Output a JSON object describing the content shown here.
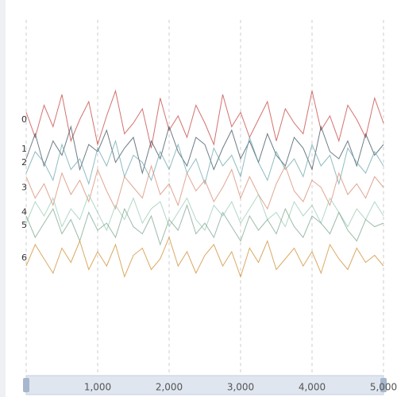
{
  "chart_data": {
    "type": "line",
    "x": [
      0,
      125,
      250,
      375,
      500,
      625,
      750,
      875,
      1000,
      1125,
      1250,
      1375,
      1500,
      1625,
      1750,
      1875,
      2000,
      2125,
      2250,
      2375,
      2500,
      2625,
      2750,
      2875,
      3000,
      3125,
      3250,
      3375,
      3500,
      3625,
      3750,
      3875,
      4000,
      4125,
      4250,
      4375,
      4500,
      4625,
      4750,
      4875,
      5000
    ],
    "xlim": [
      0,
      5000
    ],
    "xticks": [
      {
        "value": 1000,
        "label": "1,000"
      },
      {
        "value": 2000,
        "label": "2,000"
      },
      {
        "value": 3000,
        "label": "3,000"
      },
      {
        "value": 4000,
        "label": "4,000"
      },
      {
        "value": 5000,
        "label": "5,000"
      }
    ],
    "ylim": [
      0,
      10
    ],
    "grid": true,
    "series": [
      {
        "name": "0",
        "color": "#c23531",
        "values": [
          7.3,
          6.6,
          7.5,
          6.9,
          7.8,
          6.5,
          7.1,
          7.6,
          6.4,
          7.2,
          7.9,
          6.7,
          7.0,
          7.4,
          6.3,
          7.7,
          6.8,
          7.2,
          6.6,
          7.5,
          7.0,
          6.4,
          7.8,
          6.9,
          7.3,
          6.6,
          7.1,
          7.6,
          6.5,
          7.4,
          7.0,
          6.7,
          7.9,
          6.8,
          7.2,
          6.5,
          7.5,
          7.1,
          6.6,
          7.7,
          7.0
        ]
      },
      {
        "name": "1",
        "color": "#2f4554",
        "values": [
          6.0,
          6.7,
          5.8,
          6.5,
          6.1,
          6.9,
          5.7,
          6.4,
          6.2,
          6.8,
          5.9,
          6.3,
          6.6,
          5.6,
          6.5,
          6.0,
          6.9,
          6.2,
          5.8,
          6.6,
          6.4,
          5.7,
          6.3,
          6.8,
          6.0,
          6.5,
          5.9,
          6.7,
          6.1,
          5.8,
          6.6,
          6.3,
          5.7,
          6.9,
          6.2,
          6.0,
          6.5,
          5.8,
          6.7,
          6.1,
          6.4
        ]
      },
      {
        "name": "2",
        "color": "#61a0a8",
        "values": [
          5.6,
          6.2,
          5.9,
          5.4,
          6.4,
          5.7,
          6.0,
          5.3,
          6.3,
          5.8,
          6.5,
          5.5,
          6.1,
          5.9,
          5.4,
          6.2,
          5.7,
          6.4,
          5.6,
          6.0,
          5.3,
          6.3,
          5.8,
          6.1,
          5.5,
          6.6,
          5.9,
          5.4,
          6.2,
          5.7,
          6.0,
          5.5,
          6.4,
          5.8,
          6.1,
          5.3,
          6.3,
          5.9,
          5.6,
          6.2,
          5.8
        ]
      },
      {
        "name": "3",
        "color": "#d48265",
        "values": [
          5.5,
          4.9,
          5.3,
          4.7,
          5.6,
          5.0,
          5.4,
          4.8,
          5.7,
          5.1,
          4.6,
          5.5,
          5.2,
          4.9,
          5.8,
          5.0,
          5.3,
          4.7,
          5.6,
          5.1,
          5.4,
          4.8,
          5.2,
          5.7,
          4.9,
          5.5,
          5.0,
          4.6,
          5.3,
          5.8,
          5.1,
          4.8,
          5.4,
          5.2,
          4.7,
          5.6,
          5.0,
          5.3,
          4.9,
          5.5,
          5.2
        ]
      },
      {
        "name": "4",
        "color": "#91c7ae",
        "values": [
          4.2,
          4.8,
          4.4,
          4.9,
          4.1,
          4.6,
          4.3,
          5.0,
          4.5,
          4.0,
          4.7,
          4.3,
          4.9,
          4.2,
          4.6,
          4.8,
          4.1,
          4.5,
          4.9,
          4.3,
          4.0,
          4.7,
          4.4,
          4.8,
          4.2,
          4.6,
          5.0,
          4.3,
          4.5,
          4.1,
          4.8,
          4.4,
          4.7,
          4.2,
          4.9,
          4.5,
          4.1,
          4.6,
          4.3,
          4.8,
          4.4
        ]
      },
      {
        "name": "5",
        "color": "#749f83",
        "values": [
          4.4,
          3.8,
          4.2,
          4.6,
          3.9,
          4.3,
          3.7,
          4.5,
          4.0,
          4.2,
          3.8,
          4.6,
          4.1,
          3.9,
          4.4,
          3.6,
          4.3,
          4.0,
          4.7,
          3.9,
          4.2,
          3.8,
          4.5,
          4.1,
          3.7,
          4.4,
          4.0,
          4.3,
          3.9,
          4.6,
          4.1,
          3.8,
          4.4,
          4.2,
          3.9,
          4.5,
          4.0,
          3.7,
          4.3,
          4.1,
          4.2
        ]
      },
      {
        "name": "6",
        "color": "#ca8622",
        "values": [
          3.0,
          3.6,
          3.2,
          2.8,
          3.5,
          3.1,
          3.7,
          2.9,
          3.4,
          3.0,
          3.6,
          2.7,
          3.3,
          3.5,
          2.9,
          3.2,
          3.8,
          3.0,
          3.4,
          2.8,
          3.3,
          3.6,
          3.0,
          3.4,
          2.7,
          3.5,
          3.1,
          3.7,
          2.9,
          3.2,
          3.5,
          3.0,
          3.4,
          2.8,
          3.6,
          3.2,
          2.9,
          3.5,
          3.1,
          3.3,
          3.0
        ]
      }
    ]
  }
}
